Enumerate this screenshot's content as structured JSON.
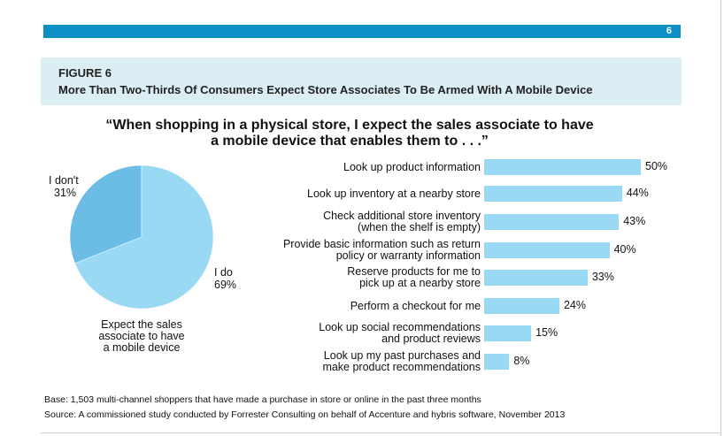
{
  "page": {
    "number": "6"
  },
  "figure": {
    "label": "FIGURE 6",
    "title": "More Than Two-Thirds Of Consumers Expect Store Associates To Be Armed With A Mobile Device"
  },
  "question": {
    "line1": "“When shopping in a physical store, I expect the sales associate to have",
    "line2": "a mobile device that enables them to . . .”"
  },
  "chart_data": [
    {
      "type": "pie",
      "slices": [
        {
          "label": "I don't",
          "value": 31,
          "value_text": "31%",
          "color": "#6cbde6"
        },
        {
          "label": "I do",
          "value": 69,
          "value_text": "69%",
          "color": "#9ad9f4"
        }
      ],
      "caption": [
        "Expect the sales",
        "associate to have",
        "a mobile device"
      ]
    },
    {
      "type": "bar",
      "orientation": "horizontal",
      "xlim": [
        0,
        50
      ],
      "bar_color": "#9ad9f4",
      "categories": [
        [
          "Look up product information"
        ],
        [
          "Look up inventory at a nearby store"
        ],
        [
          "Check additional store inventory",
          "(when the shelf is empty)"
        ],
        [
          "Provide basic information such as return",
          "policy or warranty information"
        ],
        [
          "Reserve products for me to",
          "pick up at a nearby store"
        ],
        [
          "Perform a checkout for me"
        ],
        [
          "Look up social recommendations",
          "and product reviews"
        ],
        [
          "Look up my past purchases and",
          "make product recommendations"
        ]
      ],
      "values": [
        50,
        44,
        43,
        40,
        33,
        24,
        15,
        8
      ],
      "value_labels": [
        "50%",
        "44%",
        "43%",
        "40%",
        "33%",
        "24%",
        "15%",
        "8%"
      ]
    }
  ],
  "footer": {
    "base": "Base: 1,503 multi-channel shoppers that have made a purchase in store or online in the past three months",
    "source": "Source: A commissioned study conducted by Forrester Consulting on behalf of Accenture and hybris software, November 2013"
  }
}
